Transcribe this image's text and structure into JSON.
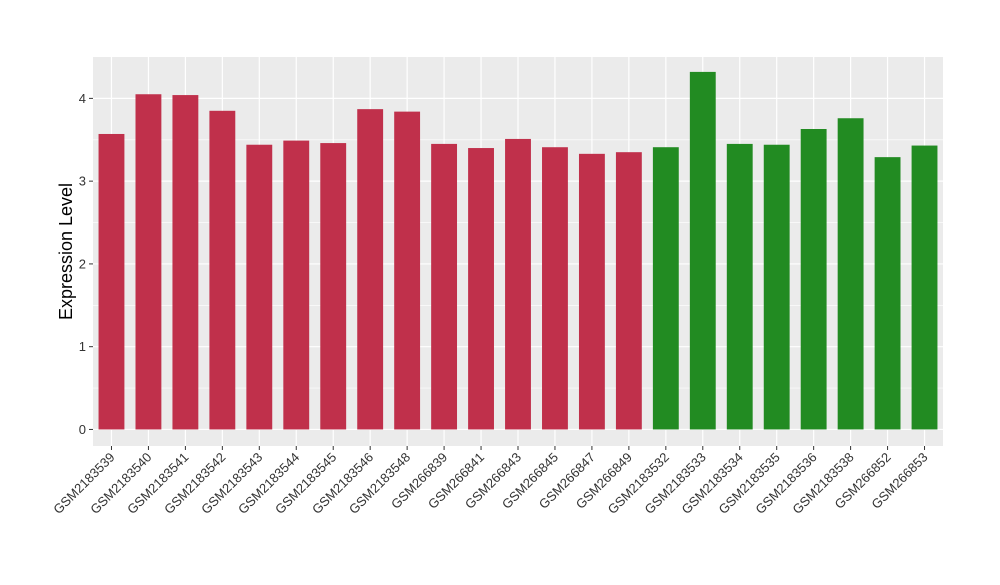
{
  "chart_data": {
    "type": "bar",
    "ylabel": "Expression Level",
    "xlabel": "",
    "title": "",
    "ylim": [
      -0.2,
      4.5
    ],
    "yticks": [
      0,
      1,
      2,
      3,
      4
    ],
    "grid": true,
    "categories": [
      "GSM2183539",
      "GSM2183540",
      "GSM2183541",
      "GSM2183542",
      "GSM2183543",
      "GSM2183544",
      "GSM2183545",
      "GSM2183546",
      "GSM2183548",
      "GSM266839",
      "GSM266841",
      "GSM266843",
      "GSM266845",
      "GSM266847",
      "GSM266849",
      "GSM2183532",
      "GSM2183533",
      "GSM2183534",
      "GSM2183535",
      "GSM2183536",
      "GSM2183538",
      "GSM266852",
      "GSM266853"
    ],
    "values": [
      3.57,
      4.05,
      4.04,
      3.85,
      3.44,
      3.49,
      3.46,
      3.87,
      3.84,
      3.45,
      3.4,
      3.51,
      3.41,
      3.33,
      3.35,
      3.41,
      4.32,
      3.45,
      3.44,
      3.63,
      3.76,
      3.29,
      3.43
    ],
    "bar_colors": [
      "#C0304B",
      "#C0304B",
      "#C0304B",
      "#C0304B",
      "#C0304B",
      "#C0304B",
      "#C0304B",
      "#C0304B",
      "#C0304B",
      "#C0304B",
      "#C0304B",
      "#C0304B",
      "#C0304B",
      "#C0304B",
      "#C0304B",
      "#228B22",
      "#228B22",
      "#228B22",
      "#228B22",
      "#228B22",
      "#228B22",
      "#228B22",
      "#228B22"
    ],
    "panel_color": "#EBEBEB",
    "grid_color": "#FFFFFF"
  }
}
